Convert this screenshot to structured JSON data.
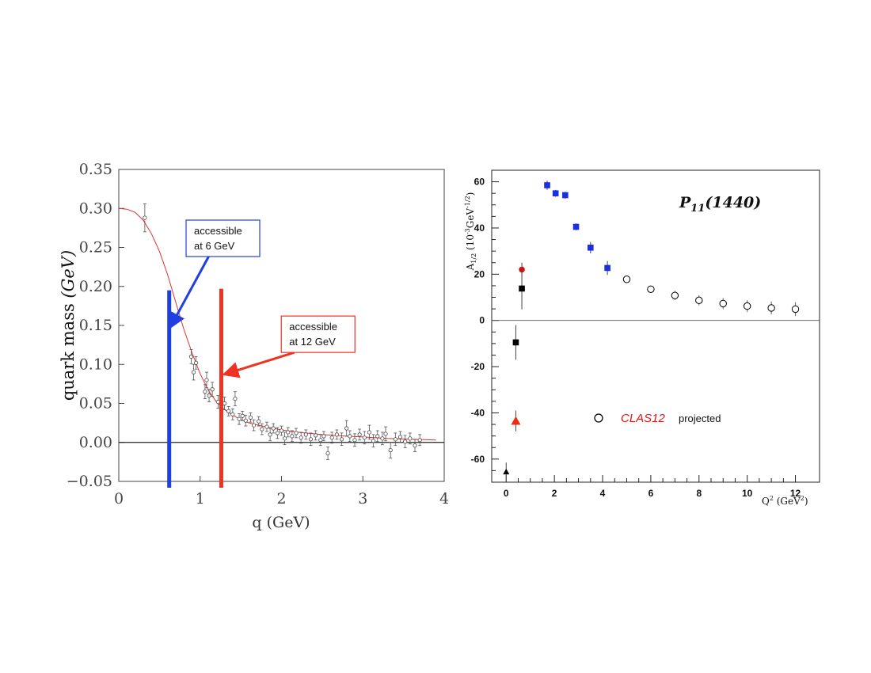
{
  "chart_data": [
    {
      "type": "scatter",
      "xlabel": "q (GeV)",
      "ylabel_prefix": "quark mass ",
      "ylabel_unit": "(GeV)",
      "xlim": [
        0,
        4
      ],
      "ylim": [
        -0.05,
        0.35
      ],
      "x_ticks": [
        {
          "value": 0,
          "label": "0"
        },
        {
          "value": 1,
          "label": "1"
        },
        {
          "value": 2,
          "label": "2"
        },
        {
          "value": 3,
          "label": "3"
        },
        {
          "value": 4,
          "label": "4"
        }
      ],
      "y_ticks": [
        {
          "value": -0.05,
          "label": "−0.05"
        },
        {
          "value": 0.0,
          "label": "0.00"
        },
        {
          "value": 0.05,
          "label": "0.05"
        },
        {
          "value": 0.1,
          "label": "0.10"
        },
        {
          "value": 0.15,
          "label": "0.15"
        },
        {
          "value": 0.2,
          "label": "0.20"
        },
        {
          "value": 0.25,
          "label": "0.25"
        },
        {
          "value": 0.3,
          "label": "0.30"
        },
        {
          "value": 0.35,
          "label": "0.35"
        }
      ],
      "curve": {
        "x": [
          0,
          0.1,
          0.2,
          0.3,
          0.4,
          0.5,
          0.6,
          0.7,
          0.8,
          0.9,
          1.0,
          1.1,
          1.2,
          1.3,
          1.4,
          1.5,
          1.6,
          1.8,
          2.0,
          2.2,
          2.5,
          2.8,
          3.0,
          3.3,
          3.6,
          3.9
        ],
        "y": [
          0.3,
          0.299,
          0.295,
          0.285,
          0.268,
          0.245,
          0.215,
          0.18,
          0.145,
          0.115,
          0.088,
          0.067,
          0.052,
          0.042,
          0.035,
          0.029,
          0.025,
          0.02,
          0.016,
          0.013,
          0.01,
          0.008,
          0.007,
          0.005,
          0.004,
          0.003
        ],
        "color": "#e03030"
      },
      "points": [
        {
          "x": 0.32,
          "y": 0.288,
          "err": 0.018
        },
        {
          "x": 0.89,
          "y": 0.11,
          "err": 0.009
        },
        {
          "x": 0.92,
          "y": 0.09,
          "err": 0.01
        },
        {
          "x": 0.95,
          "y": 0.102,
          "err": 0.008
        },
        {
          "x": 1.06,
          "y": 0.065,
          "err": 0.009
        },
        {
          "x": 1.08,
          "y": 0.08,
          "err": 0.01
        },
        {
          "x": 1.11,
          "y": 0.06,
          "err": 0.008
        },
        {
          "x": 1.15,
          "y": 0.068,
          "err": 0.009
        },
        {
          "x": 1.22,
          "y": 0.052,
          "err": 0.008
        },
        {
          "x": 1.26,
          "y": 0.047,
          "err": 0.007
        },
        {
          "x": 1.3,
          "y": 0.05,
          "err": 0.008
        },
        {
          "x": 1.35,
          "y": 0.04,
          "err": 0.006
        },
        {
          "x": 1.4,
          "y": 0.036,
          "err": 0.007
        },
        {
          "x": 1.43,
          "y": 0.056,
          "err": 0.009
        },
        {
          "x": 1.48,
          "y": 0.03,
          "err": 0.007
        },
        {
          "x": 1.52,
          "y": 0.034,
          "err": 0.006
        },
        {
          "x": 1.56,
          "y": 0.028,
          "err": 0.007
        },
        {
          "x": 1.62,
          "y": 0.032,
          "err": 0.006
        },
        {
          "x": 1.66,
          "y": 0.022,
          "err": 0.007
        },
        {
          "x": 1.72,
          "y": 0.027,
          "err": 0.006
        },
        {
          "x": 1.76,
          "y": 0.017,
          "err": 0.007
        },
        {
          "x": 1.82,
          "y": 0.02,
          "err": 0.006
        },
        {
          "x": 1.86,
          "y": 0.01,
          "err": 0.008
        },
        {
          "x": 1.9,
          "y": 0.018,
          "err": 0.006
        },
        {
          "x": 1.95,
          "y": 0.012,
          "err": 0.007
        },
        {
          "x": 2.0,
          "y": 0.015,
          "err": 0.006
        },
        {
          "x": 2.04,
          "y": 0.005,
          "err": 0.008
        },
        {
          "x": 2.08,
          "y": 0.013,
          "err": 0.006
        },
        {
          "x": 2.13,
          "y": 0.008,
          "err": 0.007
        },
        {
          "x": 2.18,
          "y": 0.012,
          "err": 0.006
        },
        {
          "x": 2.24,
          "y": 0.006,
          "err": 0.007
        },
        {
          "x": 2.3,
          "y": 0.01,
          "err": 0.006
        },
        {
          "x": 2.36,
          "y": 0.004,
          "err": 0.008
        },
        {
          "x": 2.42,
          "y": 0.009,
          "err": 0.006
        },
        {
          "x": 2.48,
          "y": 0.003,
          "err": 0.007
        },
        {
          "x": 2.52,
          "y": 0.008,
          "err": 0.006
        },
        {
          "x": 2.57,
          "y": -0.014,
          "err": 0.008
        },
        {
          "x": 2.62,
          "y": 0.006,
          "err": 0.007
        },
        {
          "x": 2.68,
          "y": 0.01,
          "err": 0.006
        },
        {
          "x": 2.74,
          "y": 0.004,
          "err": 0.008
        },
        {
          "x": 2.8,
          "y": 0.018,
          "err": 0.01
        },
        {
          "x": 2.84,
          "y": 0.008,
          "err": 0.007
        },
        {
          "x": 2.9,
          "y": 0.003,
          "err": 0.008
        },
        {
          "x": 2.96,
          "y": 0.01,
          "err": 0.007
        },
        {
          "x": 3.02,
          "y": 0.006,
          "err": 0.008
        },
        {
          "x": 3.08,
          "y": 0.013,
          "err": 0.009
        },
        {
          "x": 3.13,
          "y": 0.002,
          "err": 0.008
        },
        {
          "x": 3.18,
          "y": 0.008,
          "err": 0.007
        },
        {
          "x": 3.24,
          "y": 0.005,
          "err": 0.008
        },
        {
          "x": 3.28,
          "y": 0.011,
          "err": 0.009
        },
        {
          "x": 3.34,
          "y": -0.01,
          "err": 0.01
        },
        {
          "x": 3.4,
          "y": 0.004,
          "err": 0.008
        },
        {
          "x": 3.46,
          "y": 0.007,
          "err": 0.007
        },
        {
          "x": 3.52,
          "y": 0.001,
          "err": 0.008
        },
        {
          "x": 3.58,
          "y": 0.005,
          "err": 0.007
        },
        {
          "x": 3.64,
          "y": -0.004,
          "err": 0.008
        },
        {
          "x": 3.7,
          "y": 0.003,
          "err": 0.007
        }
      ],
      "bands": [
        {
          "x": 0.62,
          "y_top": 0.195,
          "color": "#1f3fe0"
        },
        {
          "x": 1.26,
          "y_top": 0.197,
          "color": "#ee3322"
        }
      ],
      "annotations": [
        {
          "lines": [
            "accessible",
            "at 6 GeV"
          ],
          "border": "#1f3fe0",
          "arrow_color": "#1f3fe0",
          "anchor_x": 1.28,
          "anchor_y": 0.283,
          "target_x": 0.63,
          "target_y": 0.147
        },
        {
          "lines": [
            "accessible",
            "at 12 GeV"
          ],
          "border": "#ee3322",
          "arrow_color": "#ee3322",
          "anchor_x": 2.45,
          "anchor_y": 0.16,
          "target_x": 1.29,
          "target_y": 0.087
        }
      ]
    },
    {
      "type": "scatter",
      "title_main": "P",
      "title_sub": "11",
      "title_rest": "(1440)",
      "ylabel_main": "A",
      "ylabel_sub": "1/2",
      "ylabel_text": " (10",
      "ylabel_sup": "-3",
      "ylabel_unit": "GeV",
      "ylabel_unit_sup": "-1/2",
      "ylabel_close": ")",
      "xlabel_main": "Q",
      "xlabel_sup": "2",
      "xlabel_text": " (GeV",
      "xlabel_unit_sup": "2",
      "xlabel_close": ")",
      "xlim": [
        -0.6,
        13.0
      ],
      "ylim": [
        -70,
        65
      ],
      "x_ticks": [
        {
          "value": 0,
          "label": "0"
        },
        {
          "value": 2,
          "label": "2"
        },
        {
          "value": 4,
          "label": "4"
        },
        {
          "value": 6,
          "label": "6"
        },
        {
          "value": 8,
          "label": "8"
        },
        {
          "value": 10,
          "label": "10"
        },
        {
          "value": 12,
          "label": "12"
        }
      ],
      "y_ticks": [
        {
          "value": -60,
          "label": "-60"
        },
        {
          "value": -40,
          "label": "-40"
        },
        {
          "value": -20,
          "label": "-20"
        },
        {
          "value": 0,
          "label": "0"
        },
        {
          "value": 20,
          "label": "20"
        },
        {
          "value": 40,
          "label": "40"
        },
        {
          "value": 60,
          "label": "60"
        }
      ],
      "series": [
        {
          "marker": "square",
          "color": "#1a2fe0",
          "points": [
            {
              "x": 1.7,
              "y": 58.5,
              "err": 2.0
            },
            {
              "x": 2.05,
              "y": 55.0,
              "err": 1.5
            },
            {
              "x": 2.45,
              "y": 54.2,
              "err": 1.5
            },
            {
              "x": 2.9,
              "y": 40.5,
              "err": 1.5
            },
            {
              "x": 3.5,
              "y": 31.5,
              "err": 2.5
            },
            {
              "x": 4.2,
              "y": 22.7,
              "err": 3.0
            }
          ]
        },
        {
          "marker": "circle-open",
          "color": "#000000",
          "points": [
            {
              "x": 5.0,
              "y": 17.8,
              "err": 0
            },
            {
              "x": 6.0,
              "y": 13.5,
              "err": 1.0
            },
            {
              "x": 7.0,
              "y": 10.8,
              "err": 2.0
            },
            {
              "x": 8.0,
              "y": 8.7,
              "err": 2.2
            },
            {
              "x": 9.0,
              "y": 7.3,
              "err": 2.4
            },
            {
              "x": 10.0,
              "y": 6.2,
              "err": 2.6
            },
            {
              "x": 11.0,
              "y": 5.4,
              "err": 2.8
            },
            {
              "x": 12.0,
              "y": 4.9,
              "err": 3.0
            }
          ]
        },
        {
          "marker": "circle",
          "color": "#e01010",
          "points": [
            {
              "x": 0.65,
              "y": 22.0,
              "err": 3.0
            }
          ]
        },
        {
          "marker": "square",
          "color": "#000000",
          "points": [
            {
              "x": 0.65,
              "y": 13.8,
              "err": 9.0
            },
            {
              "x": 0.4,
              "y": -9.5,
              "err": 7.5
            }
          ]
        },
        {
          "marker": "triangle",
          "color": "#ee2a10",
          "points": [
            {
              "x": 0.4,
              "y": -43.5,
              "err": 4.5
            }
          ]
        },
        {
          "marker": "triangle",
          "color": "#000000",
          "points": [
            {
              "x": 0.0,
              "y": -65.5,
              "err": 4.0
            }
          ]
        }
      ],
      "legend": {
        "name": "CLAS12",
        "suffix": "projected",
        "name_color": "#ee1111",
        "placement": "lower-middle"
      }
    }
  ]
}
